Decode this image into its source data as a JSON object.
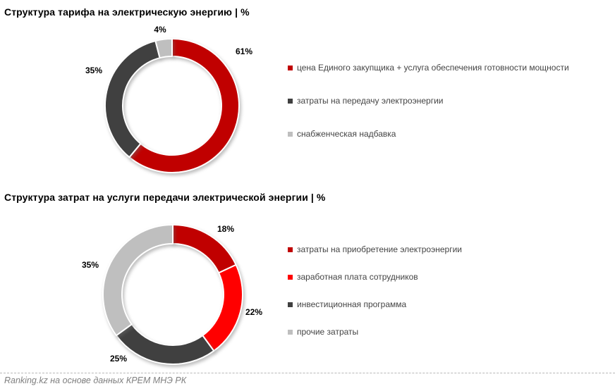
{
  "page": {
    "background": "#FFFFFF",
    "footer": {
      "source_text": "Ranking.kz на основе данных КРЕМ МНЭ РК"
    }
  },
  "chart_data": [
    {
      "type": "pie",
      "subtype": "donut",
      "title": "Структура тарифа на электрическую энергию | %",
      "categories": [
        "цена Единого закупщика + услуга обеспечения готовности мощности",
        "затраты на передачу электроэнергии",
        "снабженческая надбавка"
      ],
      "values": [
        61,
        35,
        4
      ],
      "labels": [
        "61%",
        "35%",
        "4%"
      ],
      "colors": [
        "#C00000",
        "#404040",
        "#BFBFBF"
      ],
      "start_angle_deg": 0,
      "direction": "clockwise",
      "legend_position": "right",
      "slice_border_color": "#FFFFFF"
    },
    {
      "type": "pie",
      "subtype": "donut",
      "title": "Структура затрат на услуги передачи электрической энергии | %",
      "categories": [
        "затраты на приобретение электроэнергии",
        "заработная плата сотрудников",
        "инвестиционная программа",
        "прочие затраты"
      ],
      "values": [
        18,
        22,
        25,
        35
      ],
      "labels": [
        "18%",
        "22%",
        "25%",
        "35%"
      ],
      "colors": [
        "#C00000",
        "#FF0000",
        "#404040",
        "#BFBFBF"
      ],
      "start_angle_deg": 0,
      "direction": "clockwise",
      "legend_position": "right",
      "slice_border_color": "#FFFFFF"
    }
  ]
}
